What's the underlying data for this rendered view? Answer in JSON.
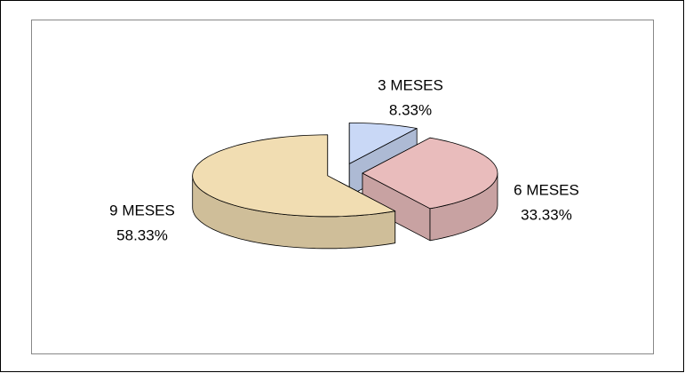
{
  "chart_data": {
    "type": "pie",
    "categories": [
      "3 MESES",
      "6 MESES",
      "9 MESES"
    ],
    "values": [
      8.33,
      33.33,
      58.33
    ],
    "value_labels": [
      "8.33%",
      "33.33%",
      "58.33%"
    ],
    "colors": [
      "#c9d8f6",
      "#e9bcbc",
      "#f1ddb2"
    ]
  }
}
